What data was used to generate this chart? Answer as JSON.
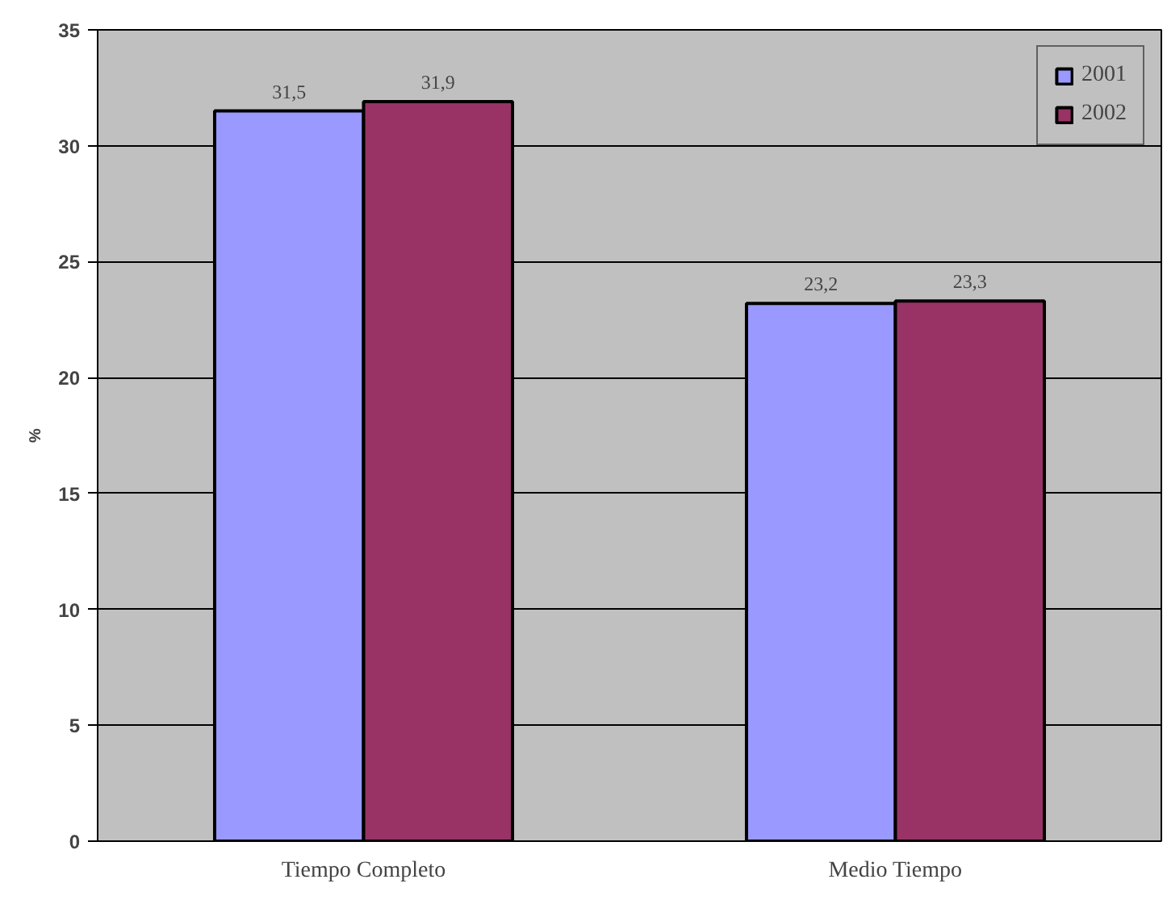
{
  "chart_data": {
    "type": "bar",
    "ylabel": "%",
    "categories": [
      "Tiempo Completo",
      "Medio Tiempo"
    ],
    "series": [
      {
        "name": "2001",
        "color": "#9999ff",
        "values": [
          31.5,
          23.2
        ],
        "value_labels": [
          "31,5",
          "23,2"
        ]
      },
      {
        "name": "2002",
        "color": "#993366",
        "values": [
          31.9,
          23.3
        ],
        "value_labels": [
          "31,9",
          "23,3"
        ]
      }
    ],
    "ylim": [
      0,
      35
    ],
    "yticks": [
      0,
      5,
      10,
      15,
      20,
      25,
      30,
      35
    ],
    "grid": "y",
    "legend": "top right"
  }
}
